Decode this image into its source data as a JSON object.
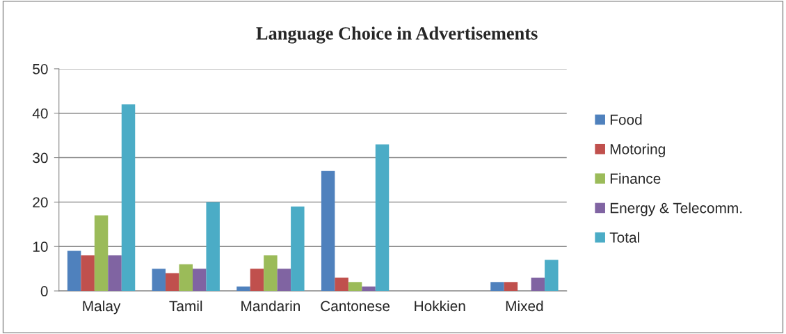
{
  "chart_data": {
    "type": "bar",
    "title": "Language Choice in Advertisements",
    "categories": [
      "Malay",
      "Tamil",
      "Mandarin",
      "Cantonese",
      "Hokkien",
      "Mixed"
    ],
    "series": [
      {
        "name": "Food",
        "color": "#4f81bd",
        "values": [
          9,
          5,
          1,
          27,
          null,
          2
        ]
      },
      {
        "name": "Motoring",
        "color": "#c0504d",
        "values": [
          8,
          4,
          5,
          3,
          null,
          2
        ]
      },
      {
        "name": "Finance",
        "color": "#9bbb59",
        "values": [
          17,
          6,
          8,
          2,
          null,
          null
        ]
      },
      {
        "name": "Energy & Telecomm.",
        "color": "#8064a2",
        "values": [
          8,
          5,
          5,
          1,
          null,
          3
        ]
      },
      {
        "name": "Total",
        "color": "#4bacc6",
        "values": [
          42,
          20,
          19,
          33,
          null,
          7
        ]
      }
    ],
    "ylim": [
      0,
      50
    ],
    "yticks": [
      0,
      10,
      20,
      30,
      40,
      50
    ],
    "grid": "y",
    "legend": "right"
  }
}
